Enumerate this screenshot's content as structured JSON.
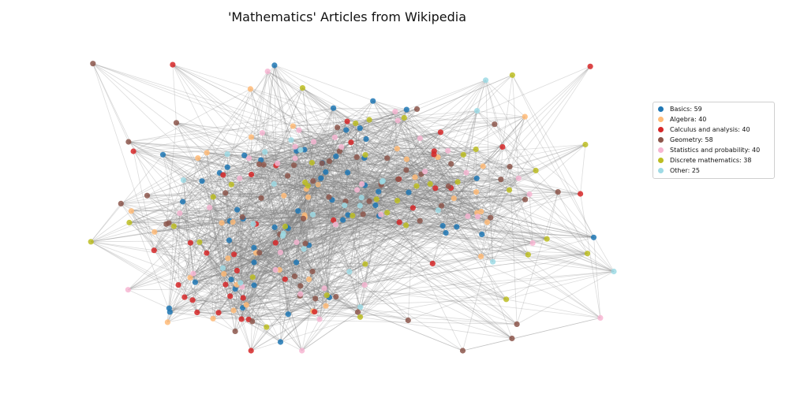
{
  "chart_data": {
    "type": "network",
    "title": "'Mathematics' Articles from Wikipedia",
    "edge_color": "#808080",
    "legend_placement": "right",
    "categories": [
      {
        "name": "Basics: 59",
        "count": 59,
        "color": "#1f77b4"
      },
      {
        "name": "Algebra: 40",
        "count": 40,
        "color": "#ffbb78"
      },
      {
        "name": "Calculus and analysis: 40",
        "count": 40,
        "color": "#d62728"
      },
      {
        "name": "Geometry: 58",
        "count": 58,
        "color": "#8c564b"
      },
      {
        "name": "Statistics and probability: 40",
        "count": 40,
        "color": "#f7b6d2"
      },
      {
        "name": "Discrete mathematics: 38",
        "count": 38,
        "color": "#bcbd22"
      },
      {
        "name": "Other: 25",
        "count": 25,
        "color": "#9edae5"
      }
    ]
  }
}
